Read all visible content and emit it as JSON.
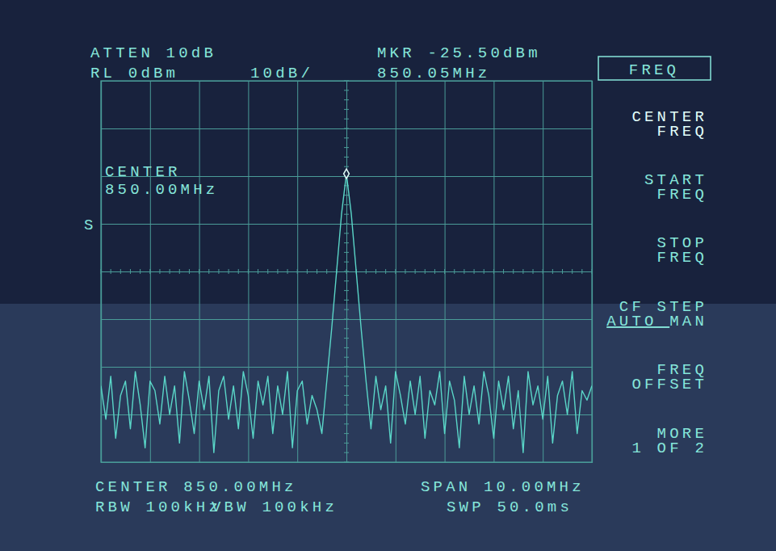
{
  "chart_data": {
    "type": "line",
    "color": "#5ad6c8",
    "x": [
      845.0,
      845.1,
      845.2,
      845.3,
      845.4,
      845.5,
      845.6,
      845.7,
      845.8,
      845.9,
      846.0,
      846.1,
      846.2,
      846.3,
      846.4,
      846.5,
      846.6,
      846.7,
      846.8,
      846.9,
      847.0,
      847.1,
      847.2,
      847.3,
      847.4,
      847.5,
      847.6,
      847.7,
      847.8,
      847.9,
      848.0,
      848.1,
      848.2,
      848.3,
      848.4,
      848.5,
      848.6,
      848.7,
      848.8,
      848.9,
      849.0,
      849.1,
      849.2,
      849.3,
      849.4,
      849.5,
      849.6,
      849.7,
      849.8,
      849.9,
      850.0,
      850.1,
      850.2,
      850.3,
      850.4,
      850.5,
      850.6,
      850.7,
      850.8,
      850.9,
      851.0,
      851.1,
      851.2,
      851.3,
      851.4,
      851.5,
      851.6,
      851.7,
      851.8,
      851.9,
      852.0,
      852.1,
      852.2,
      852.3,
      852.4,
      852.5,
      852.6,
      852.7,
      852.8,
      852.9,
      853.0,
      853.1,
      853.2,
      853.3,
      853.4,
      853.5,
      853.6,
      853.7,
      853.8,
      853.9,
      854.0,
      854.1,
      854.2,
      854.3,
      854.4,
      854.5,
      854.6,
      854.7,
      854.8,
      854.9,
      855.0
    ],
    "values": [
      -64,
      -71,
      -62,
      -75,
      -66,
      -63,
      -73,
      -61,
      -68,
      -77,
      -63,
      -65,
      -72,
      -62,
      -70,
      -64,
      -76,
      -61,
      -67,
      -74,
      -63,
      -69,
      -62,
      -78,
      -65,
      -62,
      -71,
      -64,
      -73,
      -61,
      -66,
      -75,
      -63,
      -68,
      -62,
      -74,
      -64,
      -70,
      -61,
      -77,
      -65,
      -63,
      -72,
      -66,
      -69,
      -74,
      -63,
      -52,
      -40,
      -28,
      -19.5,
      -28,
      -40,
      -52,
      -63,
      -73,
      -62,
      -69,
      -64,
      -76,
      -61,
      -66,
      -72,
      -63,
      -70,
      -62,
      -75,
      -65,
      -68,
      -61,
      -74,
      -63,
      -67,
      -77,
      -62,
      -70,
      -64,
      -72,
      -61,
      -66,
      -75,
      -63,
      -69,
      -62,
      -73,
      -65,
      -78,
      -61,
      -68,
      -64,
      -71,
      -62,
      -76,
      -66,
      -63,
      -70,
      -61,
      -74,
      -65,
      -67,
      -64
    ],
    "xlim": [
      845,
      855
    ],
    "ylim": [
      -80,
      0
    ],
    "xticks": [
      845,
      846,
      847,
      848,
      849,
      850,
      851,
      852,
      853,
      854,
      855
    ],
    "yticks": [
      -80,
      -70,
      -60,
      -50,
      -40,
      -30,
      -20,
      -10,
      0
    ],
    "grid": true,
    "tick_labels": false,
    "annotations": [
      "ATTEN 10dB",
      "RL 0dBm",
      "10dB/",
      "MKR -25.50dBm",
      "850.05MHz",
      "CENTER",
      "850.00MHz",
      "S",
      "CENTER 850.00MHz",
      "RBW 100kHz",
      "VBW 100kHz",
      "SPAN 10.00MHz",
      "SWP 50.0ms"
    ]
  },
  "softkey_menu": {
    "title": "FREQ",
    "keys": [
      [
        "CENTER",
        "FREQ"
      ],
      [
        "START",
        "FREQ"
      ],
      [
        "STOP",
        "FREQ"
      ],
      [
        "CF STEP",
        "AUTO MAN"
      ],
      [
        "FREQ",
        "OFFSET"
      ],
      [
        "MORE",
        "1 OF 2"
      ]
    ]
  }
}
